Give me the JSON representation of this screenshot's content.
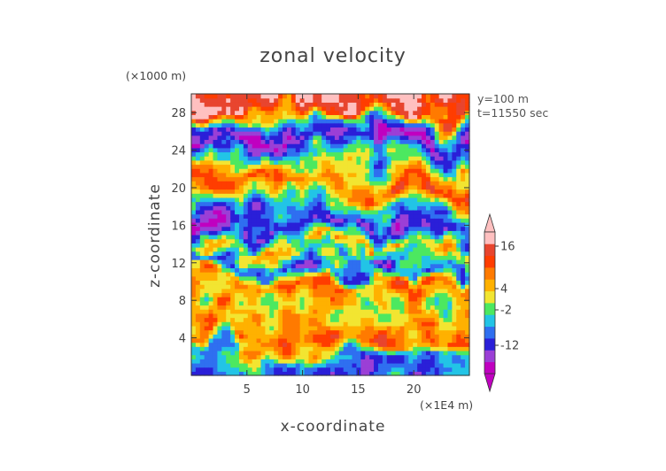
{
  "chart_data": {
    "type": "heatmap",
    "title": "zonal velocity",
    "xlabel": "x-coordinate",
    "ylabel": "z-coordinate",
    "x_unit": "(×1E4 m)",
    "y_unit": "(×1000 m)",
    "xlim": [
      0,
      25
    ],
    "ylim": [
      0,
      30
    ],
    "x_ticks": [
      5,
      10,
      15,
      20
    ],
    "y_ticks": [
      4,
      8,
      12,
      16,
      20,
      24,
      28
    ],
    "annotations": [
      "y=100 m",
      "t=11550 sec"
    ],
    "colorbar": {
      "ticks": [
        16,
        4,
        -2,
        -12
      ],
      "colors": [
        "#c000c0",
        "#9b3fd6",
        "#2a1fd8",
        "#2f6ff0",
        "#22c4e6",
        "#4ce860",
        "#f2e531",
        "#ffb100",
        "#ff7a00",
        "#ff3d00",
        "#e8452e",
        "#ffc0c0"
      ],
      "extend": "both"
    },
    "bands": [
      {
        "z": 28.5,
        "v": 14
      },
      {
        "z": 26.5,
        "v": -6
      },
      {
        "z": 24.5,
        "v": -16
      },
      {
        "z": 22.5,
        "v": -4
      },
      {
        "z": 20.5,
        "v": 10
      },
      {
        "z": 18.5,
        "v": -2
      },
      {
        "z": 16.5,
        "v": -10
      },
      {
        "z": 15.5,
        "v": -14
      },
      {
        "z": 13.5,
        "v": 4
      },
      {
        "z": 12.0,
        "v": -10
      },
      {
        "z": 10.5,
        "v": 8
      },
      {
        "z": 8.5,
        "v": 2
      },
      {
        "z": 6.5,
        "v": 6
      },
      {
        "z": 4.5,
        "v": 10
      },
      {
        "z": 2.5,
        "v": -6
      },
      {
        "z": 0.8,
        "v": -8
      }
    ]
  }
}
